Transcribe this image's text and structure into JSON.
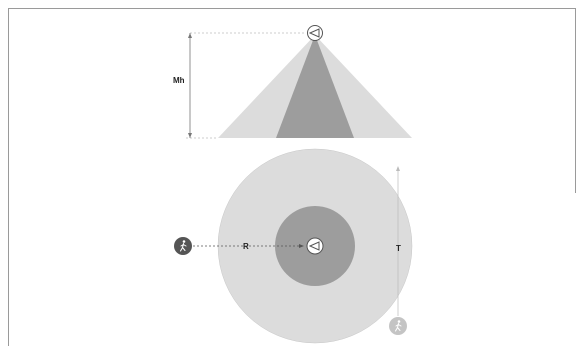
{
  "diagram": {
    "labels": {
      "mounting_height": "Mh",
      "radial": "R",
      "tangential": "T"
    },
    "colors": {
      "outer_zone": "#dcdcdc",
      "inner_zone": "#9d9d9d",
      "cone_side": "#d6d6d6",
      "guide_line": "#777777",
      "person_dark": "#555555",
      "person_light": "#c4c4c4"
    },
    "icons": [
      "sensor-icon",
      "person-walking-icon"
    ]
  }
}
